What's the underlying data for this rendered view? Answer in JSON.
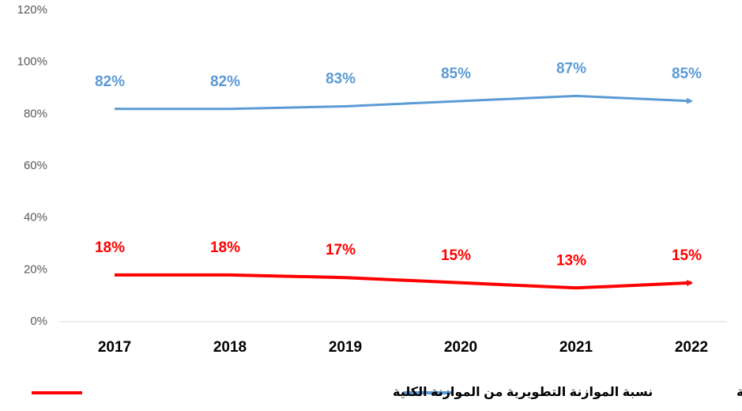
{
  "chart_data": {
    "type": "line",
    "categories": [
      "2017",
      "2018",
      "2019",
      "2020",
      "2021",
      "2022"
    ],
    "series": [
      {
        "name": "نسبة الموازنة التشغيلية من الموازنة الكلية",
        "color": "#5b9bd5",
        "values": [
          82,
          82,
          83,
          85,
          87,
          85
        ],
        "value_labels": [
          "82%",
          "82%",
          "83%",
          "85%",
          "87%",
          "85%"
        ]
      },
      {
        "name": "نسبة الموازنة التطويرية من الموازنة الكلية",
        "color": "#ff0000",
        "values": [
          18,
          18,
          17,
          15,
          13,
          15
        ],
        "value_labels": [
          "18%",
          "18%",
          "17%",
          "15%",
          "13%",
          "15%"
        ]
      }
    ],
    "ylim": [
      0,
      120
    ],
    "yticks": [
      {
        "value": 0,
        "label": "0%"
      },
      {
        "value": 20,
        "label": "20%"
      },
      {
        "value": 40,
        "label": "40%"
      },
      {
        "value": 60,
        "label": "60%"
      },
      {
        "value": 80,
        "label": "80%"
      },
      {
        "value": 100,
        "label": "100%"
      },
      {
        "value": 120,
        "label": "120%"
      }
    ],
    "grid": false,
    "legend": "bottom"
  }
}
